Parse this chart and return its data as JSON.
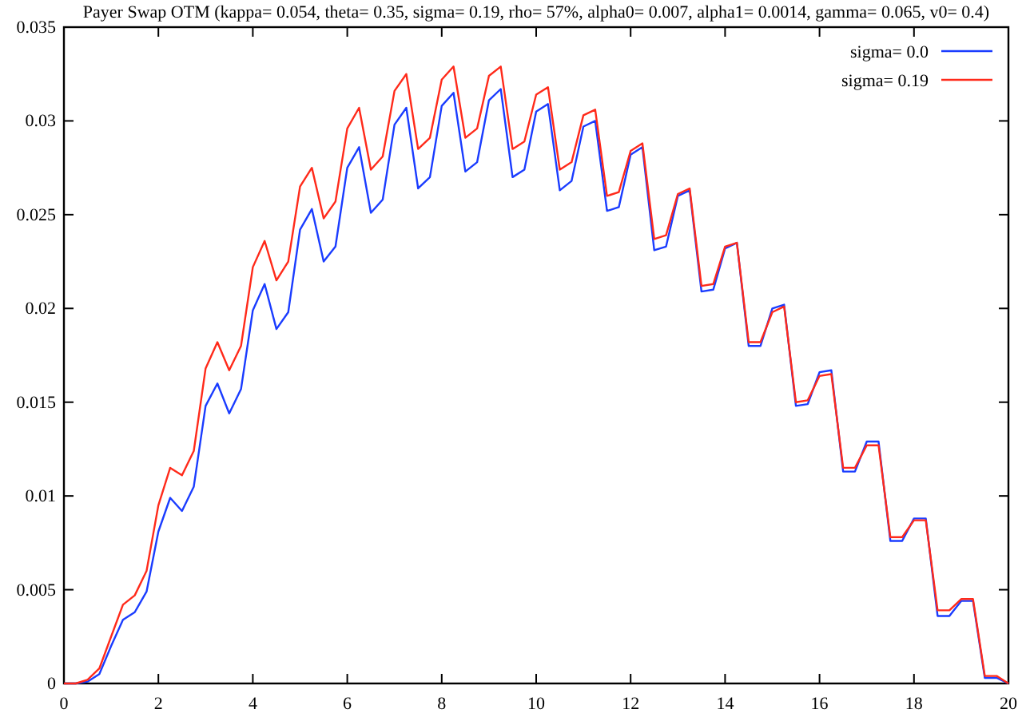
{
  "chart_data": {
    "type": "line",
    "title": "Payer Swap OTM (kappa= 0.054, theta= 0.35, sigma= 0.19, rho= 57%, alpha0= 0.007, alpha1= 0.0014, gamma= 0.065, v0= 0.4)",
    "x": [
      0,
      0.25,
      0.5,
      0.75,
      1,
      1.25,
      1.5,
      1.75,
      2,
      2.25,
      2.5,
      2.75,
      3,
      3.25,
      3.5,
      3.75,
      4,
      4.25,
      4.5,
      4.75,
      5,
      5.25,
      5.5,
      5.75,
      6,
      6.25,
      6.5,
      6.75,
      7,
      7.25,
      7.5,
      7.75,
      8,
      8.25,
      8.5,
      8.75,
      9,
      9.25,
      9.5,
      9.75,
      10,
      10.25,
      10.5,
      10.75,
      11,
      11.25,
      11.5,
      11.75,
      12,
      12.25,
      12.5,
      12.75,
      13,
      13.25,
      13.5,
      13.75,
      14,
      14.25,
      14.5,
      14.75,
      15,
      15.25,
      15.5,
      15.75,
      16,
      16.25,
      16.5,
      16.75,
      17,
      17.25,
      17.5,
      17.75,
      18,
      18.25,
      18.5,
      18.75,
      19,
      19.25,
      19.5,
      19.75,
      20
    ],
    "series": [
      {
        "name": "sigma= 0.0",
        "color": "#1a3cff",
        "values": [
          0,
          0,
          0.0001,
          0.0005,
          0.002,
          0.0034,
          0.0038,
          0.0049,
          0.0081,
          0.0099,
          0.0092,
          0.0105,
          0.0148,
          0.016,
          0.0144,
          0.0157,
          0.0199,
          0.0213,
          0.0189,
          0.0198,
          0.0242,
          0.0253,
          0.0225,
          0.0233,
          0.0275,
          0.0286,
          0.0251,
          0.0258,
          0.0298,
          0.0307,
          0.0264,
          0.027,
          0.0308,
          0.0315,
          0.0273,
          0.0278,
          0.0311,
          0.0317,
          0.027,
          0.0274,
          0.0305,
          0.0309,
          0.0263,
          0.0268,
          0.0297,
          0.03,
          0.0252,
          0.0254,
          0.0282,
          0.0286,
          0.0231,
          0.0233,
          0.026,
          0.0263,
          0.0209,
          0.021,
          0.0232,
          0.0235,
          0.018,
          0.018,
          0.02,
          0.0202,
          0.0148,
          0.0149,
          0.0166,
          0.0167,
          0.0113,
          0.0113,
          0.0129,
          0.0129,
          0.0076,
          0.0076,
          0.0088,
          0.0088,
          0.0036,
          0.0036,
          0.0044,
          0.0044,
          0.0003,
          0.0003,
          0
        ]
      },
      {
        "name": "sigma= 0.19",
        "color": "#ff2a1a",
        "values": [
          0,
          0,
          0.0002,
          0.0008,
          0.0025,
          0.0042,
          0.0047,
          0.006,
          0.0095,
          0.0115,
          0.0111,
          0.0124,
          0.0168,
          0.0182,
          0.0167,
          0.018,
          0.0222,
          0.0236,
          0.0215,
          0.0225,
          0.0265,
          0.0275,
          0.0248,
          0.0257,
          0.0296,
          0.0307,
          0.0274,
          0.0281,
          0.0316,
          0.0325,
          0.0285,
          0.0291,
          0.0322,
          0.0329,
          0.0291,
          0.0296,
          0.0324,
          0.0329,
          0.0285,
          0.0289,
          0.0314,
          0.0318,
          0.0274,
          0.0278,
          0.0303,
          0.0306,
          0.026,
          0.0262,
          0.0284,
          0.0288,
          0.0237,
          0.0239,
          0.0261,
          0.0264,
          0.0212,
          0.0213,
          0.0233,
          0.0235,
          0.0182,
          0.0182,
          0.0198,
          0.0201,
          0.015,
          0.0151,
          0.0164,
          0.0165,
          0.0115,
          0.0115,
          0.0127,
          0.0127,
          0.0078,
          0.0078,
          0.0087,
          0.0087,
          0.0039,
          0.0039,
          0.0045,
          0.0045,
          0.0004,
          0.0004,
          0
        ]
      }
    ],
    "xlim": [
      0,
      20
    ],
    "xticks": [
      0,
      2,
      4,
      6,
      8,
      10,
      12,
      14,
      16,
      18,
      20
    ],
    "ylim": [
      0,
      0.035
    ],
    "yticks": [
      0,
      0.005,
      0.01,
      0.015,
      0.02,
      0.025,
      0.03,
      0.035
    ],
    "grid": false,
    "legend": "top right",
    "marker": "none",
    "line_style": "solid"
  }
}
